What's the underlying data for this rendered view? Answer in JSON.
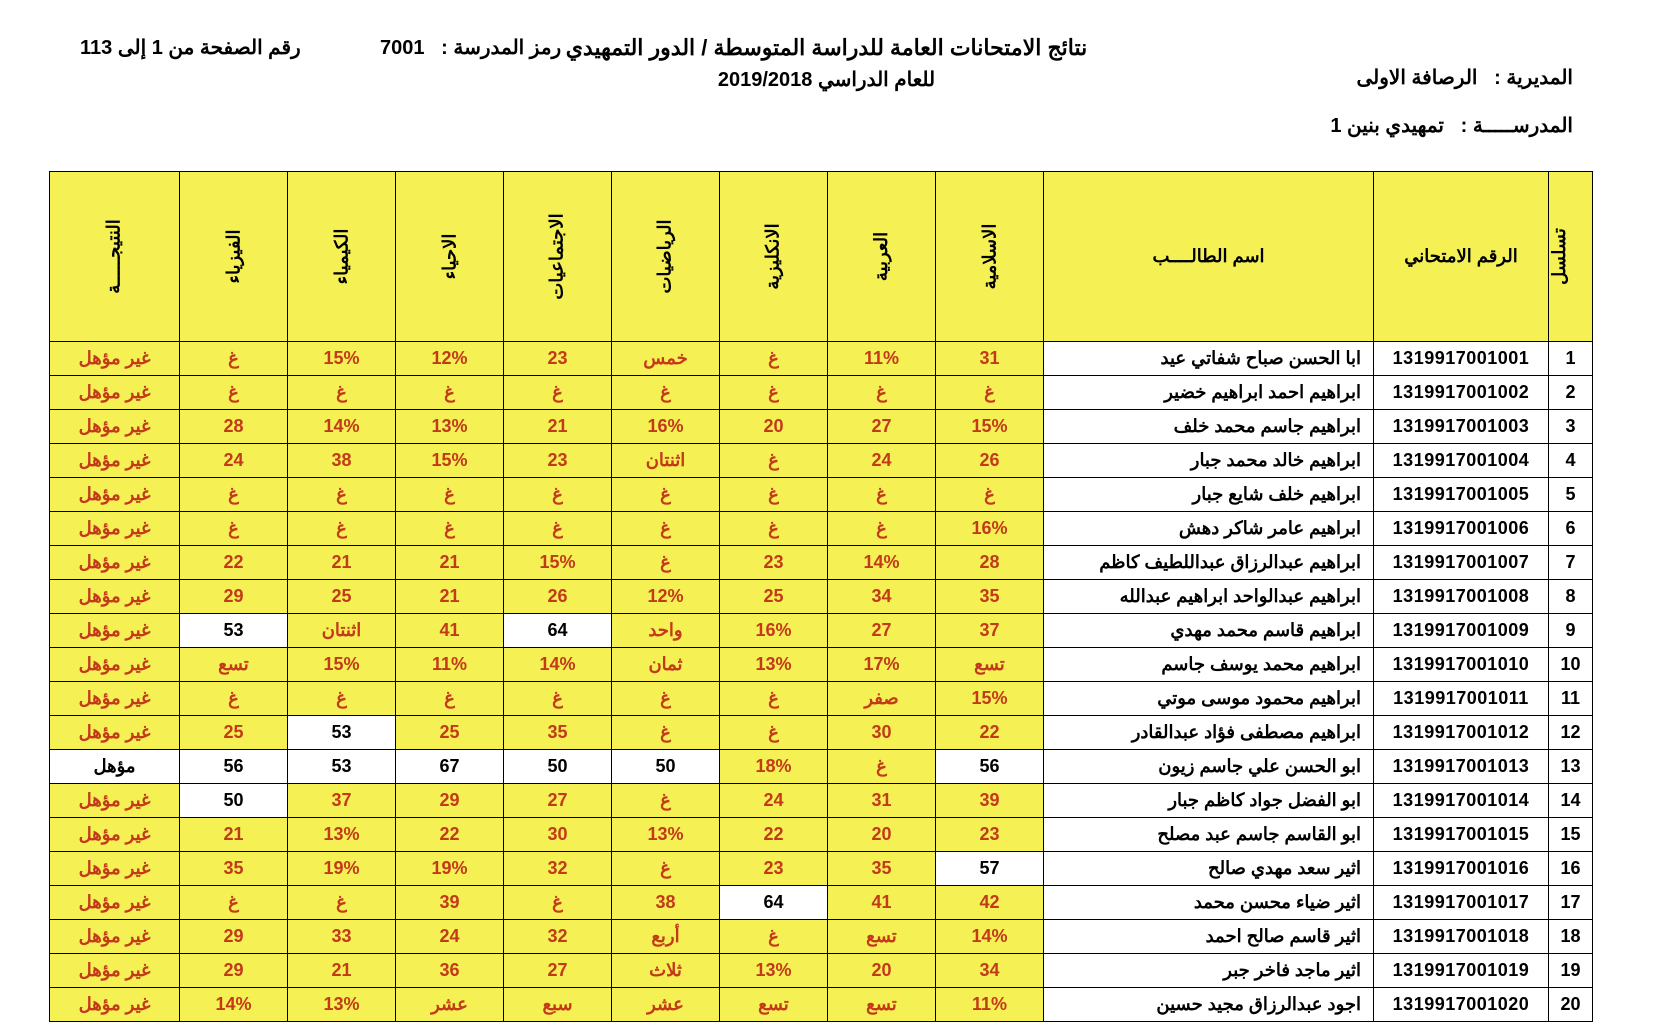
{
  "header": {
    "title1": "نتائج الامتحانات العامة للدراسة المتوسطة / الدور التمهيدي",
    "title2": "للعام الدراسي   2019/2018",
    "directorate_label": "المديرية  :",
    "directorate_value": "الرصافة الاولى",
    "school_name_label": "المدرســـــة  :",
    "school_name_value": "تمهيدي بنين 1",
    "school_code_label": "رمز المدرسة  :",
    "school_code_value": "7001",
    "page_label": "رقم الصفحة من 1 إلى 113"
  },
  "columns": {
    "seq": "تسلسل",
    "exam_no": "الرقم الامتحاني",
    "name": "اسم الطالــــب",
    "islamic": "الاسلامية",
    "arabic": "العربية",
    "english": "الانكليزية",
    "math": "الرياضيات",
    "social": "الاجتماعيات",
    "biology": "الاحياء",
    "chemistry": "الكيمياء",
    "physics": "الفيزياء",
    "result": "النتيجـــــة"
  },
  "result_labels": {
    "fail": "غير مؤهل",
    "pass": "مؤهل"
  },
  "colors": {
    "header_bg": "#f5f053",
    "fail_bg": "#f5f053",
    "fail_fg": "#c23a1a",
    "pass_bg": "#ffffff",
    "pass_fg": "#000000",
    "border": "#000000"
  },
  "rows": [
    {
      "seq": "1",
      "exam_no": "1319917001001",
      "name": "ابا الحسن صباح شفاتي عيد",
      "islamic": {
        "v": "31",
        "pass": false
      },
      "arabic": {
        "v": "11%",
        "pass": false
      },
      "english": {
        "v": "غ",
        "pass": false
      },
      "math": {
        "v": "خمس",
        "pass": false
      },
      "social": {
        "v": "23",
        "pass": false
      },
      "biology": {
        "v": "12%",
        "pass": false
      },
      "chemistry": {
        "v": "15%",
        "pass": false
      },
      "physics": {
        "v": "غ",
        "pass": false
      },
      "result": "fail"
    },
    {
      "seq": "2",
      "exam_no": "1319917001002",
      "name": "ابراهيم احمد ابراهيم خضير",
      "islamic": {
        "v": "غ",
        "pass": false
      },
      "arabic": {
        "v": "غ",
        "pass": false
      },
      "english": {
        "v": "غ",
        "pass": false
      },
      "math": {
        "v": "غ",
        "pass": false
      },
      "social": {
        "v": "غ",
        "pass": false
      },
      "biology": {
        "v": "غ",
        "pass": false
      },
      "chemistry": {
        "v": "غ",
        "pass": false
      },
      "physics": {
        "v": "غ",
        "pass": false
      },
      "result": "fail"
    },
    {
      "seq": "3",
      "exam_no": "1319917001003",
      "name": "ابراهيم جاسم محمد خلف",
      "islamic": {
        "v": "15%",
        "pass": false
      },
      "arabic": {
        "v": "27",
        "pass": false
      },
      "english": {
        "v": "20",
        "pass": false
      },
      "math": {
        "v": "16%",
        "pass": false
      },
      "social": {
        "v": "21",
        "pass": false
      },
      "biology": {
        "v": "13%",
        "pass": false
      },
      "chemistry": {
        "v": "14%",
        "pass": false
      },
      "physics": {
        "v": "28",
        "pass": false
      },
      "result": "fail"
    },
    {
      "seq": "4",
      "exam_no": "1319917001004",
      "name": "ابراهيم خالد محمد جبار",
      "islamic": {
        "v": "26",
        "pass": false
      },
      "arabic": {
        "v": "24",
        "pass": false
      },
      "english": {
        "v": "غ",
        "pass": false
      },
      "math": {
        "v": "اثنتان",
        "pass": false
      },
      "social": {
        "v": "23",
        "pass": false
      },
      "biology": {
        "v": "15%",
        "pass": false
      },
      "chemistry": {
        "v": "38",
        "pass": false
      },
      "physics": {
        "v": "24",
        "pass": false
      },
      "result": "fail"
    },
    {
      "seq": "5",
      "exam_no": "1319917001005",
      "name": "ابراهيم خلف شايع جبار",
      "islamic": {
        "v": "غ",
        "pass": false
      },
      "arabic": {
        "v": "غ",
        "pass": false
      },
      "english": {
        "v": "غ",
        "pass": false
      },
      "math": {
        "v": "غ",
        "pass": false
      },
      "social": {
        "v": "غ",
        "pass": false
      },
      "biology": {
        "v": "غ",
        "pass": false
      },
      "chemistry": {
        "v": "غ",
        "pass": false
      },
      "physics": {
        "v": "غ",
        "pass": false
      },
      "result": "fail"
    },
    {
      "seq": "6",
      "exam_no": "1319917001006",
      "name": "ابراهيم عامر شاكر دهش",
      "islamic": {
        "v": "16%",
        "pass": false
      },
      "arabic": {
        "v": "غ",
        "pass": false
      },
      "english": {
        "v": "غ",
        "pass": false
      },
      "math": {
        "v": "غ",
        "pass": false
      },
      "social": {
        "v": "غ",
        "pass": false
      },
      "biology": {
        "v": "غ",
        "pass": false
      },
      "chemistry": {
        "v": "غ",
        "pass": false
      },
      "physics": {
        "v": "غ",
        "pass": false
      },
      "result": "fail"
    },
    {
      "seq": "7",
      "exam_no": "1319917001007",
      "name": "ابراهيم عبدالرزاق عبداللطيف كاظم",
      "islamic": {
        "v": "28",
        "pass": false
      },
      "arabic": {
        "v": "14%",
        "pass": false
      },
      "english": {
        "v": "23",
        "pass": false
      },
      "math": {
        "v": "غ",
        "pass": false
      },
      "social": {
        "v": "15%",
        "pass": false
      },
      "biology": {
        "v": "21",
        "pass": false
      },
      "chemistry": {
        "v": "21",
        "pass": false
      },
      "physics": {
        "v": "22",
        "pass": false
      },
      "result": "fail"
    },
    {
      "seq": "8",
      "exam_no": "1319917001008",
      "name": "ابراهيم عبدالواحد ابراهيم عبدالله",
      "islamic": {
        "v": "35",
        "pass": false
      },
      "arabic": {
        "v": "34",
        "pass": false
      },
      "english": {
        "v": "25",
        "pass": false
      },
      "math": {
        "v": "12%",
        "pass": false
      },
      "social": {
        "v": "26",
        "pass": false
      },
      "biology": {
        "v": "21",
        "pass": false
      },
      "chemistry": {
        "v": "25",
        "pass": false
      },
      "physics": {
        "v": "29",
        "pass": false
      },
      "result": "fail"
    },
    {
      "seq": "9",
      "exam_no": "1319917001009",
      "name": "ابراهيم قاسم  محمد مهدي",
      "islamic": {
        "v": "37",
        "pass": false
      },
      "arabic": {
        "v": "27",
        "pass": false
      },
      "english": {
        "v": "16%",
        "pass": false
      },
      "math": {
        "v": "واحد",
        "pass": false
      },
      "social": {
        "v": "64",
        "pass": true
      },
      "biology": {
        "v": "41",
        "pass": false
      },
      "chemistry": {
        "v": "اثنتان",
        "pass": false
      },
      "physics": {
        "v": "53",
        "pass": true
      },
      "result": "fail"
    },
    {
      "seq": "10",
      "exam_no": "1319917001010",
      "name": "ابراهيم محمد يوسف جاسم",
      "islamic": {
        "v": "تسع",
        "pass": false
      },
      "arabic": {
        "v": "17%",
        "pass": false
      },
      "english": {
        "v": "13%",
        "pass": false
      },
      "math": {
        "v": "ثمان",
        "pass": false
      },
      "social": {
        "v": "14%",
        "pass": false
      },
      "biology": {
        "v": "11%",
        "pass": false
      },
      "chemistry": {
        "v": "15%",
        "pass": false
      },
      "physics": {
        "v": "تسع",
        "pass": false
      },
      "result": "fail"
    },
    {
      "seq": "11",
      "exam_no": "1319917001011",
      "name": "ابراهيم محمود موسى موتي",
      "islamic": {
        "v": "15%",
        "pass": false
      },
      "arabic": {
        "v": "صفر",
        "pass": false
      },
      "english": {
        "v": "غ",
        "pass": false
      },
      "math": {
        "v": "غ",
        "pass": false
      },
      "social": {
        "v": "غ",
        "pass": false
      },
      "biology": {
        "v": "غ",
        "pass": false
      },
      "chemistry": {
        "v": "غ",
        "pass": false
      },
      "physics": {
        "v": "غ",
        "pass": false
      },
      "result": "fail"
    },
    {
      "seq": "12",
      "exam_no": "1319917001012",
      "name": "ابراهيم مصطفى فؤاد عبدالقادر",
      "islamic": {
        "v": "22",
        "pass": false
      },
      "arabic": {
        "v": "30",
        "pass": false
      },
      "english": {
        "v": "غ",
        "pass": false
      },
      "math": {
        "v": "غ",
        "pass": false
      },
      "social": {
        "v": "35",
        "pass": false
      },
      "biology": {
        "v": "25",
        "pass": false
      },
      "chemistry": {
        "v": "53",
        "pass": true
      },
      "physics": {
        "v": "25",
        "pass": false
      },
      "result": "fail"
    },
    {
      "seq": "13",
      "exam_no": "1319917001013",
      "name": "ابو الحسن علي جاسم زيون",
      "islamic": {
        "v": "56",
        "pass": true
      },
      "arabic": {
        "v": "غ",
        "pass": false
      },
      "english": {
        "v": "18%",
        "pass": false
      },
      "math": {
        "v": "50",
        "pass": true
      },
      "social": {
        "v": "50",
        "pass": true
      },
      "biology": {
        "v": "67",
        "pass": true
      },
      "chemistry": {
        "v": "53",
        "pass": true
      },
      "physics": {
        "v": "56",
        "pass": true
      },
      "result": "pass"
    },
    {
      "seq": "14",
      "exam_no": "1319917001014",
      "name": "ابو الفضل جواد كاظم جبار",
      "islamic": {
        "v": "39",
        "pass": false
      },
      "arabic": {
        "v": "31",
        "pass": false
      },
      "english": {
        "v": "24",
        "pass": false
      },
      "math": {
        "v": "غ",
        "pass": false
      },
      "social": {
        "v": "27",
        "pass": false
      },
      "biology": {
        "v": "29",
        "pass": false
      },
      "chemistry": {
        "v": "37",
        "pass": false
      },
      "physics": {
        "v": "50",
        "pass": true
      },
      "result": "fail"
    },
    {
      "seq": "15",
      "exam_no": "1319917001015",
      "name": "ابو القاسم جاسم عبد مصلح",
      "islamic": {
        "v": "23",
        "pass": false
      },
      "arabic": {
        "v": "20",
        "pass": false
      },
      "english": {
        "v": "22",
        "pass": false
      },
      "math": {
        "v": "13%",
        "pass": false
      },
      "social": {
        "v": "30",
        "pass": false
      },
      "biology": {
        "v": "22",
        "pass": false
      },
      "chemistry": {
        "v": "13%",
        "pass": false
      },
      "physics": {
        "v": "21",
        "pass": false
      },
      "result": "fail"
    },
    {
      "seq": "16",
      "exam_no": "1319917001016",
      "name": "اثير سعد مهدي صالح",
      "islamic": {
        "v": "57",
        "pass": true
      },
      "arabic": {
        "v": "35",
        "pass": false
      },
      "english": {
        "v": "23",
        "pass": false
      },
      "math": {
        "v": "غ",
        "pass": false
      },
      "social": {
        "v": "32",
        "pass": false
      },
      "biology": {
        "v": "19%",
        "pass": false
      },
      "chemistry": {
        "v": "19%",
        "pass": false
      },
      "physics": {
        "v": "35",
        "pass": false
      },
      "result": "fail"
    },
    {
      "seq": "17",
      "exam_no": "1319917001017",
      "name": "اثير ضياء محسن محمد",
      "islamic": {
        "v": "42",
        "pass": false
      },
      "arabic": {
        "v": "41",
        "pass": false
      },
      "english": {
        "v": "64",
        "pass": true
      },
      "math": {
        "v": "38",
        "pass": false
      },
      "social": {
        "v": "غ",
        "pass": false
      },
      "biology": {
        "v": "39",
        "pass": false
      },
      "chemistry": {
        "v": "غ",
        "pass": false
      },
      "physics": {
        "v": "غ",
        "pass": false
      },
      "result": "fail"
    },
    {
      "seq": "18",
      "exam_no": "1319917001018",
      "name": "اثير قاسم صالح احمد",
      "islamic": {
        "v": "14%",
        "pass": false
      },
      "arabic": {
        "v": "تسع",
        "pass": false
      },
      "english": {
        "v": "غ",
        "pass": false
      },
      "math": {
        "v": "أربع",
        "pass": false
      },
      "social": {
        "v": "32",
        "pass": false
      },
      "biology": {
        "v": "24",
        "pass": false
      },
      "chemistry": {
        "v": "33",
        "pass": false
      },
      "physics": {
        "v": "29",
        "pass": false
      },
      "result": "fail"
    },
    {
      "seq": "19",
      "exam_no": "1319917001019",
      "name": "اثير ماجد فاخر جبر",
      "islamic": {
        "v": "34",
        "pass": false
      },
      "arabic": {
        "v": "20",
        "pass": false
      },
      "english": {
        "v": "13%",
        "pass": false
      },
      "math": {
        "v": "ثلاث",
        "pass": false
      },
      "social": {
        "v": "27",
        "pass": false
      },
      "biology": {
        "v": "36",
        "pass": false
      },
      "chemistry": {
        "v": "21",
        "pass": false
      },
      "physics": {
        "v": "29",
        "pass": false
      },
      "result": "fail"
    },
    {
      "seq": "20",
      "exam_no": "1319917001020",
      "name": "اجود عبدالرزاق مجيد حسين",
      "islamic": {
        "v": "11%",
        "pass": false
      },
      "arabic": {
        "v": "تسع",
        "pass": false
      },
      "english": {
        "v": "تسع",
        "pass": false
      },
      "math": {
        "v": "عشر",
        "pass": false
      },
      "social": {
        "v": "سبع",
        "pass": false
      },
      "biology": {
        "v": "عشر",
        "pass": false
      },
      "chemistry": {
        "v": "13%",
        "pass": false
      },
      "physics": {
        "v": "14%",
        "pass": false
      },
      "result": "fail"
    }
  ]
}
